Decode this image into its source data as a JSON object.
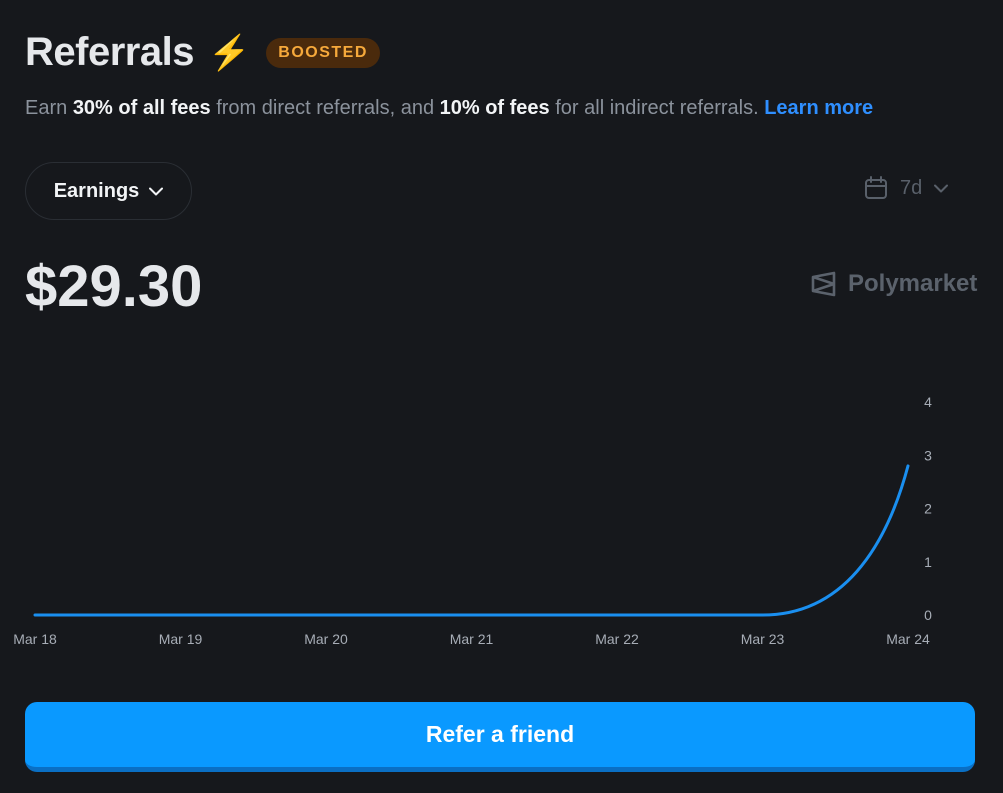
{
  "header": {
    "title": "Referrals",
    "bolt_icon": "lightning-icon",
    "badge": "BOOSTED",
    "subtitle": {
      "p1": "Earn ",
      "b1": "30% of all fees",
      "p2": " from direct referrals, and ",
      "b2": "10% of fees",
      "p3": " for all indirect referrals. ",
      "link": "Learn more"
    }
  },
  "controls": {
    "metric_dropdown": "Earnings",
    "range_dropdown": "7d"
  },
  "summary": {
    "amount": "$29.30",
    "brand": "Polymarket"
  },
  "chart_data": {
    "type": "line",
    "x": [
      "Mar 18",
      "Mar 19",
      "Mar 20",
      "Mar 21",
      "Mar 22",
      "Mar 23",
      "Mar 24"
    ],
    "series": [
      {
        "values": [
          0,
          0,
          0,
          0,
          0,
          0,
          2.8
        ]
      }
    ],
    "yticks": [
      0,
      1,
      2,
      3,
      4
    ],
    "ylim": [
      0,
      4
    ],
    "grid": false,
    "colors": {
      "line": "#1a8ff0"
    }
  },
  "cta": {
    "label": "Refer a friend"
  },
  "colors": {
    "background": "#16181c",
    "accent": "#0a99ff",
    "link": "#2f8fff",
    "badge_text": "#f6a93b"
  }
}
